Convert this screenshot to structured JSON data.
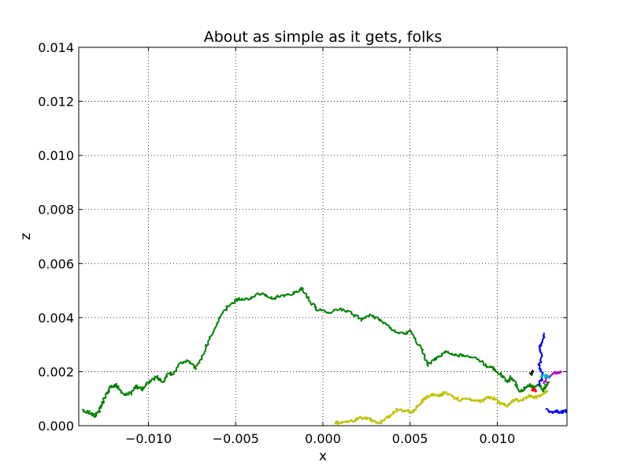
{
  "chart_data": {
    "type": "line",
    "title": "About as simple as it gets, folks",
    "xlabel": "x",
    "ylabel": "z",
    "xlim": [
      -0.014,
      0.014
    ],
    "ylim": [
      0.0,
      0.014
    ],
    "grid": true,
    "x_ticks": [
      -0.01,
      -0.005,
      0.0,
      0.005,
      0.01
    ],
    "x_tick_labels": [
      "−0.010",
      "−0.005",
      "0.000",
      "0.005",
      "0.010"
    ],
    "y_ticks": [
      0.0,
      0.002,
      0.004,
      0.006,
      0.008,
      0.01,
      0.012,
      0.014
    ],
    "y_tick_labels": [
      "0.000",
      "0.002",
      "0.004",
      "0.006",
      "0.008",
      "0.010",
      "0.012",
      "0.014"
    ],
    "series": [
      {
        "color": "#008000",
        "points": [
          [
            -0.0138,
            0.00055
          ],
          [
            -0.0134,
            0.0005
          ],
          [
            -0.0131,
            0.00035
          ],
          [
            -0.0128,
            0.0006
          ],
          [
            -0.0126,
            0.0009
          ],
          [
            -0.0124,
            0.0012
          ],
          [
            -0.0122,
            0.00145
          ],
          [
            -0.0119,
            0.0015
          ],
          [
            -0.0117,
            0.00135
          ],
          [
            -0.0113,
            0.00115
          ],
          [
            -0.011,
            0.0012
          ],
          [
            -0.0107,
            0.00145
          ],
          [
            -0.0104,
            0.00135
          ],
          [
            -0.0099,
            0.00165
          ],
          [
            -0.0095,
            0.0018
          ],
          [
            -0.0092,
            0.0016
          ],
          [
            -0.0089,
            0.0019
          ],
          [
            -0.0086,
            0.00195
          ],
          [
            -0.0082,
            0.0023
          ],
          [
            -0.0078,
            0.0024
          ],
          [
            -0.0073,
            0.00215
          ],
          [
            -0.0069,
            0.0026
          ],
          [
            -0.0066,
            0.0031
          ],
          [
            -0.0061,
            0.0037
          ],
          [
            -0.0057,
            0.0042
          ],
          [
            -0.0053,
            0.0045
          ],
          [
            -0.0048,
            0.0047
          ],
          [
            -0.0042,
            0.0047
          ],
          [
            -0.0036,
            0.0049
          ],
          [
            -0.0029,
            0.0047
          ],
          [
            -0.0023,
            0.0048
          ],
          [
            -0.0017,
            0.0049
          ],
          [
            -0.0012,
            0.0051
          ],
          [
            -0.0007,
            0.00455
          ],
          [
            -0.0003,
            0.0043
          ],
          [
            0.0003,
            0.0042
          ],
          [
            0.001,
            0.0043
          ],
          [
            0.0016,
            0.0042
          ],
          [
            0.0022,
            0.0039
          ],
          [
            0.0027,
            0.0041
          ],
          [
            0.0033,
            0.0039
          ],
          [
            0.0039,
            0.0036
          ],
          [
            0.0045,
            0.0034
          ],
          [
            0.005,
            0.0035
          ],
          [
            0.0056,
            0.0029
          ],
          [
            0.006,
            0.00225
          ],
          [
            0.0065,
            0.0025
          ],
          [
            0.007,
            0.00275
          ],
          [
            0.0076,
            0.0026
          ],
          [
            0.0082,
            0.0026
          ],
          [
            0.0088,
            0.0025
          ],
          [
            0.0094,
            0.0022
          ],
          [
            0.0098,
            0.0021
          ],
          [
            0.0102,
            0.0019
          ],
          [
            0.0106,
            0.0016
          ],
          [
            0.0108,
            0.0018
          ],
          [
            0.011,
            0.0016
          ],
          [
            0.0113,
            0.00125
          ],
          [
            0.0116,
            0.0014
          ],
          [
            0.0119,
            0.0015
          ],
          [
            0.0121,
            0.0014
          ],
          [
            0.0124,
            0.0015
          ],
          [
            0.0126,
            0.0013
          ],
          [
            0.0128,
            0.0015
          ],
          [
            0.013,
            0.0016
          ]
        ]
      },
      {
        "color": "#bfbf00",
        "points": [
          [
            0.0007,
            0.0001
          ],
          [
            0.0012,
            0.00015
          ],
          [
            0.0018,
            0.0002
          ],
          [
            0.0022,
            0.0003
          ],
          [
            0.0027,
            0.00025
          ],
          [
            0.0031,
            0.0001
          ],
          [
            0.0035,
            0.0002
          ],
          [
            0.0039,
            0.0004
          ],
          [
            0.0043,
            0.0006
          ],
          [
            0.0048,
            0.00055
          ],
          [
            0.0051,
            0.0005
          ],
          [
            0.0054,
            0.0007
          ],
          [
            0.0057,
            0.0009
          ],
          [
            0.006,
            0.0011
          ],
          [
            0.0063,
            0.00115
          ],
          [
            0.0067,
            0.0011
          ],
          [
            0.007,
            0.00125
          ],
          [
            0.0074,
            0.0011
          ],
          [
            0.0078,
            0.00095
          ],
          [
            0.0083,
            0.001
          ],
          [
            0.0088,
            0.0009
          ],
          [
            0.0092,
            0.00095
          ],
          [
            0.0095,
            0.00105
          ],
          [
            0.0099,
            0.001
          ],
          [
            0.0102,
            0.0008
          ],
          [
            0.0106,
            0.00075
          ],
          [
            0.011,
            0.00095
          ],
          [
            0.0114,
            0.0009
          ],
          [
            0.0118,
            0.0011
          ],
          [
            0.0122,
            0.00105
          ],
          [
            0.0126,
            0.0012
          ],
          [
            0.0129,
            0.0013
          ]
        ]
      },
      {
        "color": "#0000ff",
        "points": [
          [
            0.0124,
            0.0015
          ],
          [
            0.0126,
            0.0019
          ],
          [
            0.0124,
            0.0023
          ],
          [
            0.0126,
            0.0026
          ],
          [
            0.0124,
            0.0029
          ],
          [
            0.0126,
            0.0031
          ],
          [
            0.0127,
            0.0034
          ]
        ]
      },
      {
        "color": "#0000ff",
        "points": [
          [
            0.0128,
            0.0006
          ],
          [
            0.0131,
            0.0005
          ],
          [
            0.0134,
            0.00055
          ],
          [
            0.0137,
            0.0005
          ],
          [
            0.014,
            0.00055
          ]
        ]
      },
      {
        "color": "#bf00bf",
        "points": [
          [
            0.0127,
            0.0016
          ],
          [
            0.013,
            0.0018
          ],
          [
            0.0133,
            0.00195
          ],
          [
            0.0137,
            0.002
          ]
        ]
      },
      {
        "color": "#00bfbf",
        "points": [
          [
            0.0125,
            0.0018
          ],
          [
            0.0128,
            0.00185
          ],
          [
            0.013,
            0.0018
          ]
        ]
      },
      {
        "color": "#ff0000",
        "points": [
          [
            0.012,
            0.0013
          ],
          [
            0.0121,
            0.00135
          ],
          [
            0.0122,
            0.0013
          ]
        ]
      },
      {
        "color": "#000000",
        "points": [
          [
            0.0119,
            0.0019
          ],
          [
            0.0121,
            0.002
          ]
        ]
      }
    ]
  }
}
